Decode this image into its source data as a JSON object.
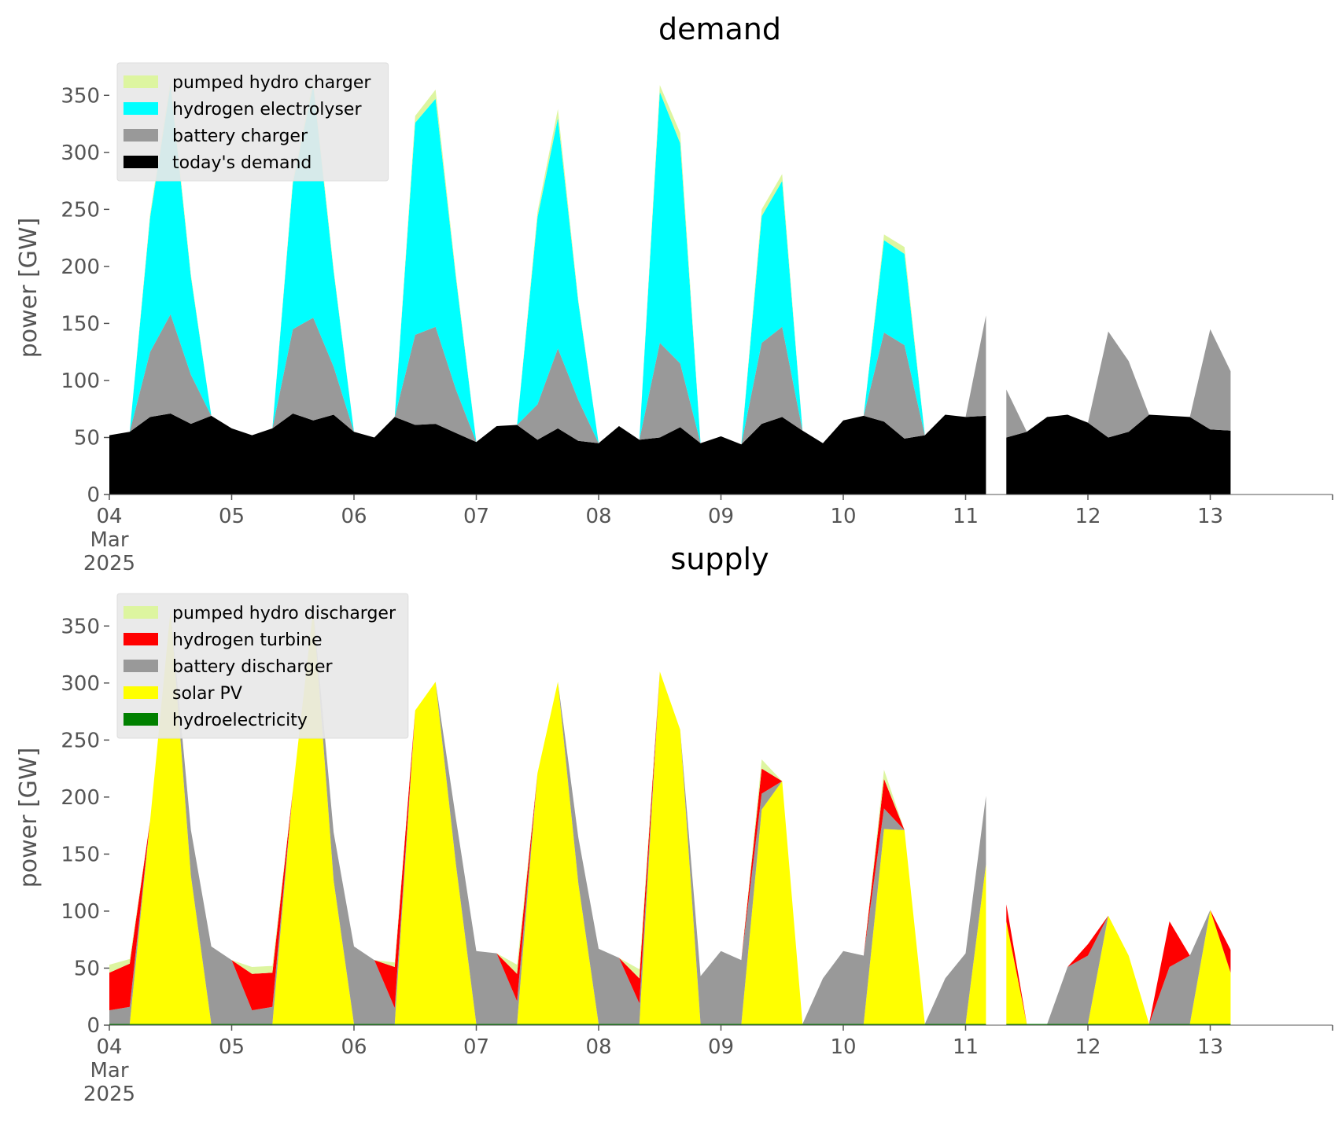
{
  "chart_data": [
    {
      "type": "area",
      "stacked": true,
      "title": "demand",
      "xlabel": "",
      "ylabel": "power [GW]",
      "ylim": [
        0,
        375
      ],
      "yticks": [
        0,
        50,
        100,
        150,
        200,
        250,
        300,
        350
      ],
      "x_range_days": [
        "2025-03-04",
        "2025-03-14"
      ],
      "xtick_labels": [
        "04",
        "05",
        "06",
        "07",
        "08",
        "09",
        "10",
        "11",
        "12",
        "13"
      ],
      "xtick_first_extra": [
        "Mar",
        "2025"
      ],
      "grid": false,
      "legend_position": "top-left",
      "data_gap": [
        "2025-03-11 04:00",
        "2025-03-11 05:00"
      ],
      "x_step": "4 hours",
      "x_start": "2025-03-04 00:00",
      "series": [
        {
          "name": "today's demand",
          "color": "#000000",
          "values": [
            52,
            55,
            68,
            71,
            62,
            69,
            58,
            52,
            58,
            71,
            65,
            70,
            55,
            50,
            68,
            61,
            62,
            54,
            46,
            60,
            61,
            48,
            58,
            47,
            45,
            60,
            48,
            50,
            59,
            45,
            51,
            44,
            62,
            68,
            56,
            45,
            65,
            69,
            64,
            49,
            52,
            70,
            68,
            69,
            50,
            55,
            68,
            70,
            63,
            50,
            55,
            70,
            69,
            68,
            57,
            56
          ]
        },
        {
          "name": "battery charger",
          "color": "#999999",
          "values": [
            0,
            0,
            57,
            87,
            43,
            0,
            0,
            0,
            0,
            74,
            90,
            42,
            0,
            0,
            0,
            79,
            85,
            38,
            0,
            0,
            0,
            31,
            70,
            36,
            0,
            0,
            0,
            83,
            56,
            0,
            0,
            0,
            71,
            79,
            0,
            0,
            0,
            0,
            78,
            82,
            0,
            0,
            0,
            88,
            42,
            0,
            0,
            0,
            0,
            93,
            62,
            0,
            0,
            0,
            88,
            52
          ]
        },
        {
          "name": "hydrogen electrolyser",
          "color": "#00ffff",
          "values": [
            0,
            0,
            118,
            201,
            86,
            0,
            0,
            0,
            0,
            128,
            204,
            84,
            0,
            0,
            0,
            186,
            200,
            98,
            0,
            0,
            0,
            164,
            202,
            86,
            0,
            0,
            0,
            220,
            193,
            0,
            0,
            0,
            111,
            128,
            0,
            0,
            0,
            0,
            81,
            80,
            0,
            0,
            0,
            0,
            0,
            0,
            0,
            0,
            0,
            0,
            0,
            0,
            0,
            0,
            0,
            0
          ]
        },
        {
          "name": "pumped hydro charger",
          "color": "#ddf5a0",
          "values": [
            0,
            0,
            3,
            5,
            2,
            0,
            0,
            0,
            0,
            3,
            5,
            2,
            0,
            0,
            0,
            6,
            8,
            3,
            0,
            0,
            0,
            5,
            8,
            2,
            0,
            0,
            0,
            6,
            9,
            0,
            0,
            0,
            6,
            6,
            0,
            0,
            0,
            0,
            5,
            6,
            0,
            0,
            0,
            0,
            0,
            0,
            0,
            0,
            0,
            0,
            0,
            0,
            0,
            0,
            0,
            0
          ]
        }
      ]
    },
    {
      "type": "area",
      "stacked": true,
      "title": "supply",
      "xlabel": "",
      "ylabel": "power [GW]",
      "ylim": [
        0,
        375
      ],
      "yticks": [
        0,
        50,
        100,
        150,
        200,
        250,
        300,
        350
      ],
      "x_range_days": [
        "2025-03-04",
        "2025-03-14"
      ],
      "xtick_labels": [
        "04",
        "05",
        "06",
        "07",
        "08",
        "09",
        "10",
        "11",
        "12",
        "13"
      ],
      "xtick_first_extra": [
        "Mar",
        "2025"
      ],
      "grid": false,
      "legend_position": "top-left",
      "data_gap": [
        "2025-03-11 04:00",
        "2025-03-11 05:00"
      ],
      "x_step": "4 hours",
      "x_start": "2025-03-04 00:00",
      "series": [
        {
          "name": "hydroelectricity",
          "color": "#008000",
          "values": [
            1,
            1,
            1,
            1,
            1,
            1,
            1,
            1,
            1,
            1,
            1,
            1,
            1,
            1,
            1,
            1,
            1,
            1,
            1,
            1,
            1,
            1,
            1,
            1,
            1,
            1,
            1,
            1,
            1,
            1,
            1,
            1,
            1,
            1,
            1,
            1,
            1,
            1,
            1,
            1,
            1,
            1,
            1,
            1,
            1,
            1,
            1,
            1,
            1,
            1,
            1,
            1,
            1,
            1,
            1,
            1
          ]
        },
        {
          "name": "solar PV",
          "color": "#ffff00",
          "values": [
            0,
            0,
            178,
            363,
            130,
            0,
            0,
            0,
            0,
            205,
            364,
            126,
            0,
            0,
            0,
            275,
            300,
            140,
            0,
            0,
            0,
            220,
            300,
            124,
            0,
            0,
            0,
            309,
            258,
            0,
            0,
            0,
            188,
            213,
            0,
            0,
            0,
            0,
            171,
            170,
            0,
            0,
            0,
            140,
            90,
            0,
            0,
            0,
            0,
            95,
            60,
            0,
            0,
            0,
            100,
            45
          ]
        },
        {
          "name": "battery discharger",
          "color": "#999999",
          "values": [
            12,
            15,
            0,
            0,
            40,
            68,
            56,
            12,
            15,
            0,
            0,
            42,
            68,
            56,
            14,
            0,
            0,
            40,
            64,
            62,
            20,
            0,
            0,
            40,
            66,
            58,
            18,
            0,
            0,
            42,
            64,
            56,
            14,
            0,
            0,
            40,
            64,
            60,
            18,
            0,
            0,
            40,
            62,
            60,
            0,
            0,
            0,
            50,
            60,
            0,
            0,
            0,
            50,
            60,
            0,
            0
          ]
        },
        {
          "name": "hydrogen turbine",
          "color": "#ff0000",
          "values": [
            33,
            38,
            0,
            0,
            0,
            0,
            0,
            32,
            30,
            0,
            0,
            0,
            0,
            0,
            36,
            0,
            0,
            0,
            0,
            0,
            24,
            0,
            0,
            0,
            0,
            0,
            22,
            0,
            0,
            0,
            0,
            0,
            22,
            0,
            0,
            0,
            0,
            0,
            26,
            0,
            0,
            0,
            0,
            0,
            15,
            0,
            0,
            0,
            10,
            0,
            0,
            0,
            40,
            0,
            0,
            20
          ]
        },
        {
          "name": "pumped hydro discharger",
          "color": "#ddf5a0",
          "values": [
            7,
            4,
            0,
            0,
            0,
            0,
            0,
            6,
            6,
            0,
            0,
            0,
            0,
            0,
            4,
            0,
            0,
            0,
            0,
            0,
            8,
            0,
            0,
            0,
            0,
            0,
            8,
            0,
            0,
            0,
            0,
            0,
            8,
            0,
            0,
            0,
            0,
            0,
            8,
            0,
            0,
            0,
            0,
            0,
            0,
            0,
            0,
            0,
            0,
            0,
            0,
            0,
            0,
            0,
            0,
            0
          ]
        }
      ]
    }
  ]
}
